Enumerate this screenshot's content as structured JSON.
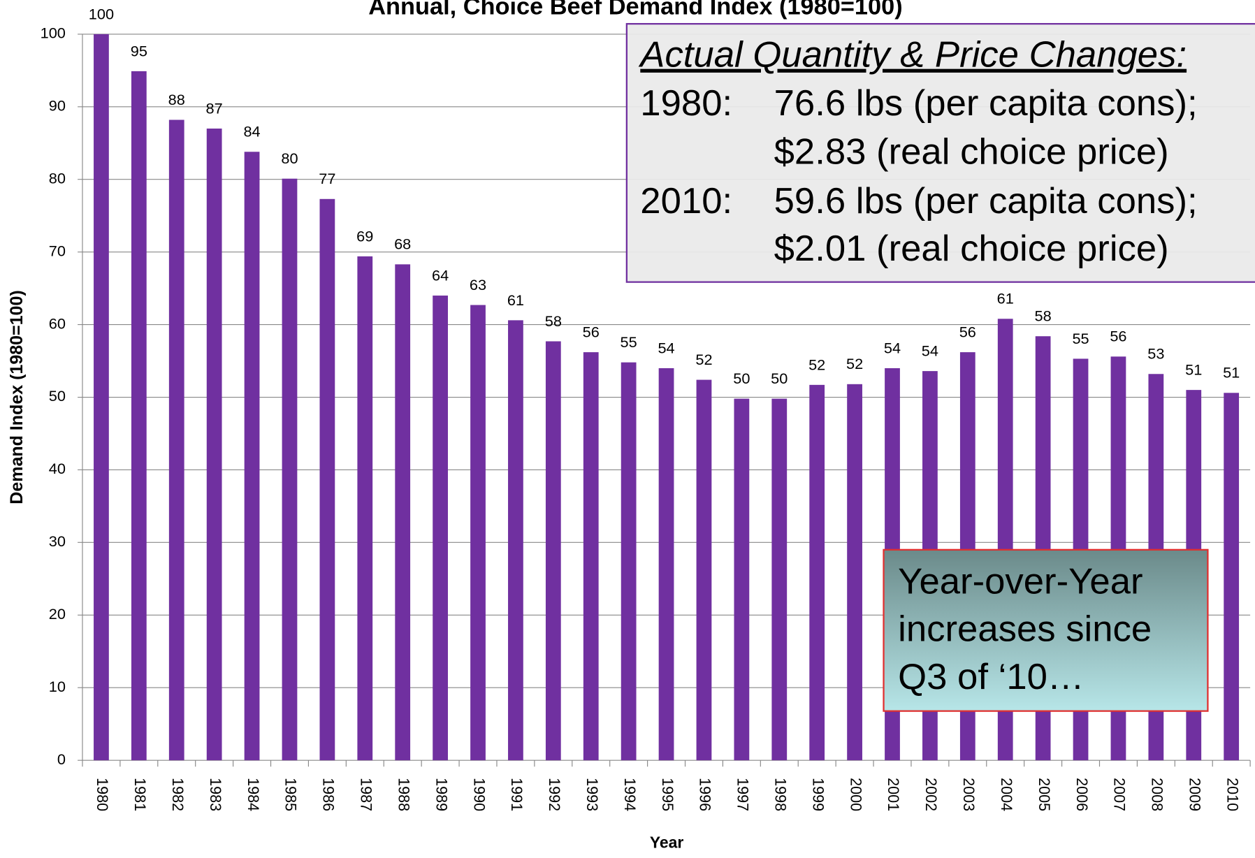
{
  "chart_data": {
    "type": "bar",
    "title": "Annual, Choice Beef Demand Index (1980=100)",
    "x_label": "Year",
    "y_label": "Demand Index (1980=100)",
    "categories": [
      "1980",
      "1981",
      "1982",
      "1983",
      "1984",
      "1985",
      "1986",
      "1987",
      "1988",
      "1989",
      "1990",
      "1991",
      "1992",
      "1993",
      "1994",
      "1995",
      "1996",
      "1997",
      "1998",
      "1999",
      "2000",
      "2001",
      "2002",
      "2003",
      "2004",
      "2005",
      "2006",
      "2007",
      "2008",
      "2009",
      "2010"
    ],
    "values": [
      100,
      94.9,
      88.2,
      87.0,
      83.8,
      80.1,
      77.3,
      69.4,
      68.3,
      64.0,
      62.7,
      60.6,
      57.7,
      56.2,
      54.8,
      54.0,
      52.4,
      49.8,
      49.8,
      51.7,
      51.8,
      54.0,
      53.6,
      56.2,
      60.8,
      58.4,
      55.3,
      55.6,
      53.2,
      51.0,
      50.6
    ],
    "value_labels": [
      "100",
      "95",
      "88",
      "87",
      "84",
      "80",
      "77",
      "69",
      "68",
      "64",
      "63",
      "61",
      "58",
      "56",
      "55",
      "54",
      "52",
      "50",
      "50",
      "52",
      "52",
      "54",
      "54",
      "56",
      "61",
      "58",
      "55",
      "56",
      "53",
      "51",
      "51"
    ],
    "color": "#7030a0",
    "ylim": [
      0,
      100
    ],
    "yticks": [
      0,
      10,
      20,
      30,
      40,
      50,
      60,
      70,
      80,
      90,
      100
    ],
    "grid": true,
    "info_box": {
      "heading": "Actual Quantity & Price Changes:",
      "rows": [
        {
          "year": "1980:",
          "line1": "76.6 lbs (per capita cons);",
          "line2": "$2.83 (real choice price)"
        },
        {
          "year": "2010:",
          "line1": "59.6 lbs (per capita cons);",
          "line2": "$2.01 (real choice price)"
        }
      ]
    },
    "callout": [
      "Year-over-Year",
      "increases since",
      "Q3 of ‘10…"
    ]
  }
}
